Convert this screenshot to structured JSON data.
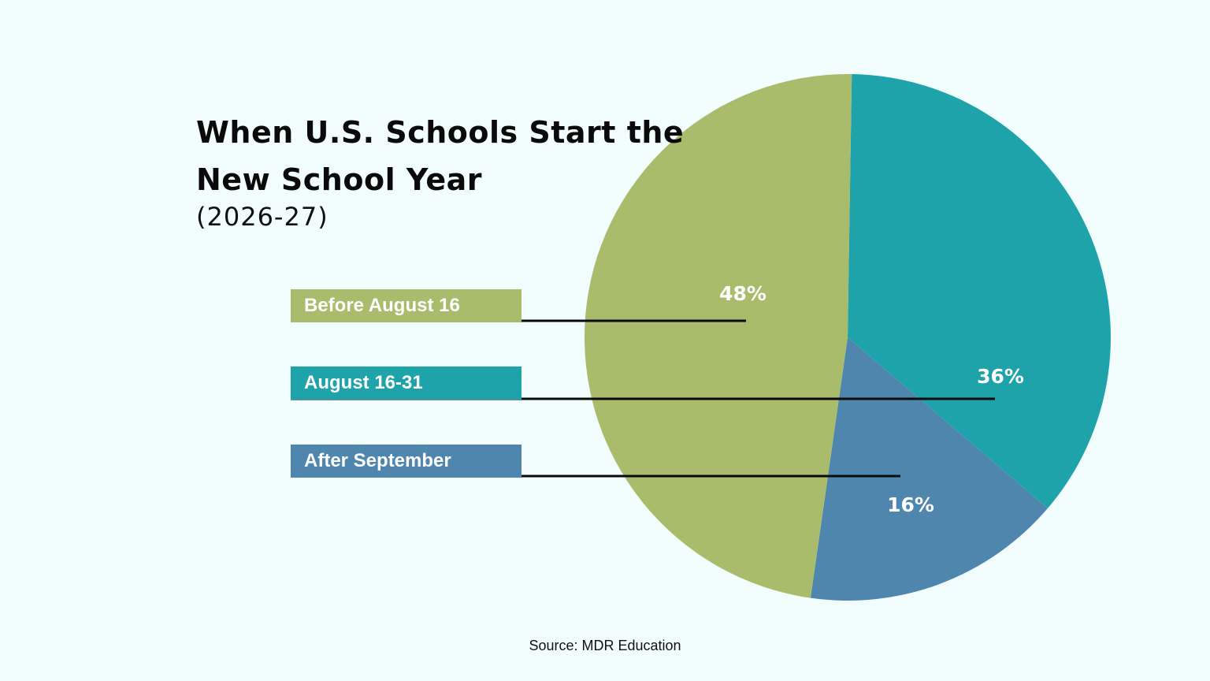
{
  "header": {
    "title": "When U.S. Schools Start the New School Year",
    "subtitle": "(2026-27)"
  },
  "footer": {
    "source": "Source: MDR Education"
  },
  "chart_data": {
    "type": "pie",
    "title": "When U.S. Schools Start the New School Year",
    "subtitle": "(2026-27)",
    "legend_placement": "left",
    "slices": [
      {
        "label": "Before August 16",
        "value": 48,
        "value_label": "48%",
        "color": "#a9bc6c"
      },
      {
        "label": "August 16-31",
        "value": 36,
        "value_label": "36%",
        "color": "#1fa3ab"
      },
      {
        "label": "After September",
        "value": 16,
        "value_label": "16%",
        "color": "#4f86ad"
      }
    ]
  }
}
